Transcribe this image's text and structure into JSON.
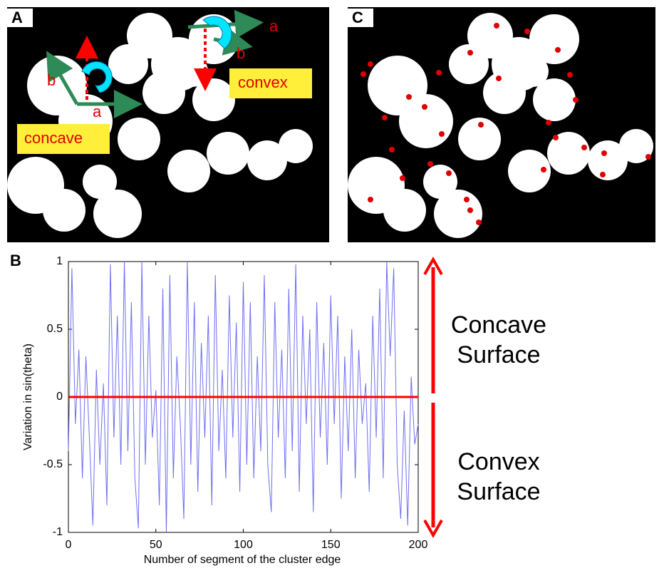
{
  "figure": {
    "panel_labels": [
      "A",
      "C",
      "B"
    ],
    "annotations_a": {
      "concave": "concave",
      "convex": "convex",
      "a1": "a",
      "b1": "b",
      "a2": "a",
      "b2": "b"
    },
    "side_labels": [
      [
        "Concave",
        "Surface"
      ],
      [
        "Convex",
        "Surface"
      ]
    ]
  },
  "chart_data": {
    "type": "line",
    "xlabel": "Number of segment of the cluster edge",
    "ylabel": "Variation in sin(theta)",
    "x": [
      0,
      2,
      4,
      6,
      8,
      10,
      12,
      14,
      16,
      18,
      20,
      22,
      24,
      26,
      28,
      30,
      32,
      34,
      36,
      38,
      40,
      42,
      44,
      46,
      48,
      50,
      52,
      54,
      56,
      58,
      60,
      62,
      64,
      66,
      68,
      70,
      72,
      74,
      76,
      78,
      80,
      82,
      84,
      86,
      88,
      90,
      92,
      94,
      96,
      98,
      100,
      102,
      104,
      106,
      108,
      110,
      112,
      114,
      116,
      118,
      120,
      122,
      124,
      126,
      128,
      130,
      132,
      134,
      136,
      138,
      140,
      142,
      144,
      146,
      148,
      150,
      152,
      154,
      156,
      158,
      160,
      162,
      164,
      166,
      168,
      170,
      172,
      174,
      176,
      178,
      180,
      182,
      184,
      186,
      188,
      190,
      192,
      194,
      196,
      198,
      200
    ],
    "series": [
      {
        "color": "#6f6ff0",
        "values": [
          -0.4,
          0.95,
          -0.2,
          0.35,
          -0.6,
          0.3,
          -0.3,
          -0.95,
          0.2,
          -0.5,
          0.1,
          -0.8,
          0.98,
          -0.3,
          0.6,
          -0.5,
          1.0,
          -0.4,
          0.7,
          -0.6,
          -0.97,
          1.0,
          -0.5,
          0.6,
          -0.3,
          0.05,
          -0.8,
          0.8,
          -1.0,
          0.9,
          -0.6,
          0.3,
          -0.2,
          -0.9,
          1.0,
          -0.5,
          0.7,
          -0.7,
          0.4,
          -0.3,
          0.6,
          -0.8,
          0.9,
          -0.4,
          0.2,
          -0.6,
          0.75,
          -0.3,
          0.55,
          -0.7,
          0.85,
          -0.5,
          0.7,
          -0.6,
          0.3,
          -0.4,
          0.9,
          -0.5,
          -0.85,
          0.7,
          -0.3,
          0.35,
          -0.6,
          0.8,
          -0.4,
          0.98,
          -0.7,
          0.6,
          -0.2,
          0.5,
          -0.85,
          0.7,
          -0.3,
          0.4,
          -0.5,
          0.75,
          -0.2,
          0.6,
          -0.75,
          0.3,
          -0.4,
          0.5,
          -0.6,
          0.35,
          -0.2,
          0.1,
          -0.7,
          0.6,
          -0.3,
          0.8,
          -0.6,
          1.0,
          0.3,
          0.95,
          -0.5,
          -0.9,
          -0.1,
          -0.95,
          0.15,
          -0.35,
          -0.2
        ]
      }
    ],
    "hlines": [
      {
        "value": 0,
        "color": "#ff0000"
      }
    ],
    "xlim": [
      0,
      200
    ],
    "xticks": [
      0,
      50,
      100,
      150,
      200
    ],
    "ylim": [
      -1,
      1
    ],
    "yticks": [
      -1,
      -0.5,
      0,
      0.5,
      1
    ]
  }
}
